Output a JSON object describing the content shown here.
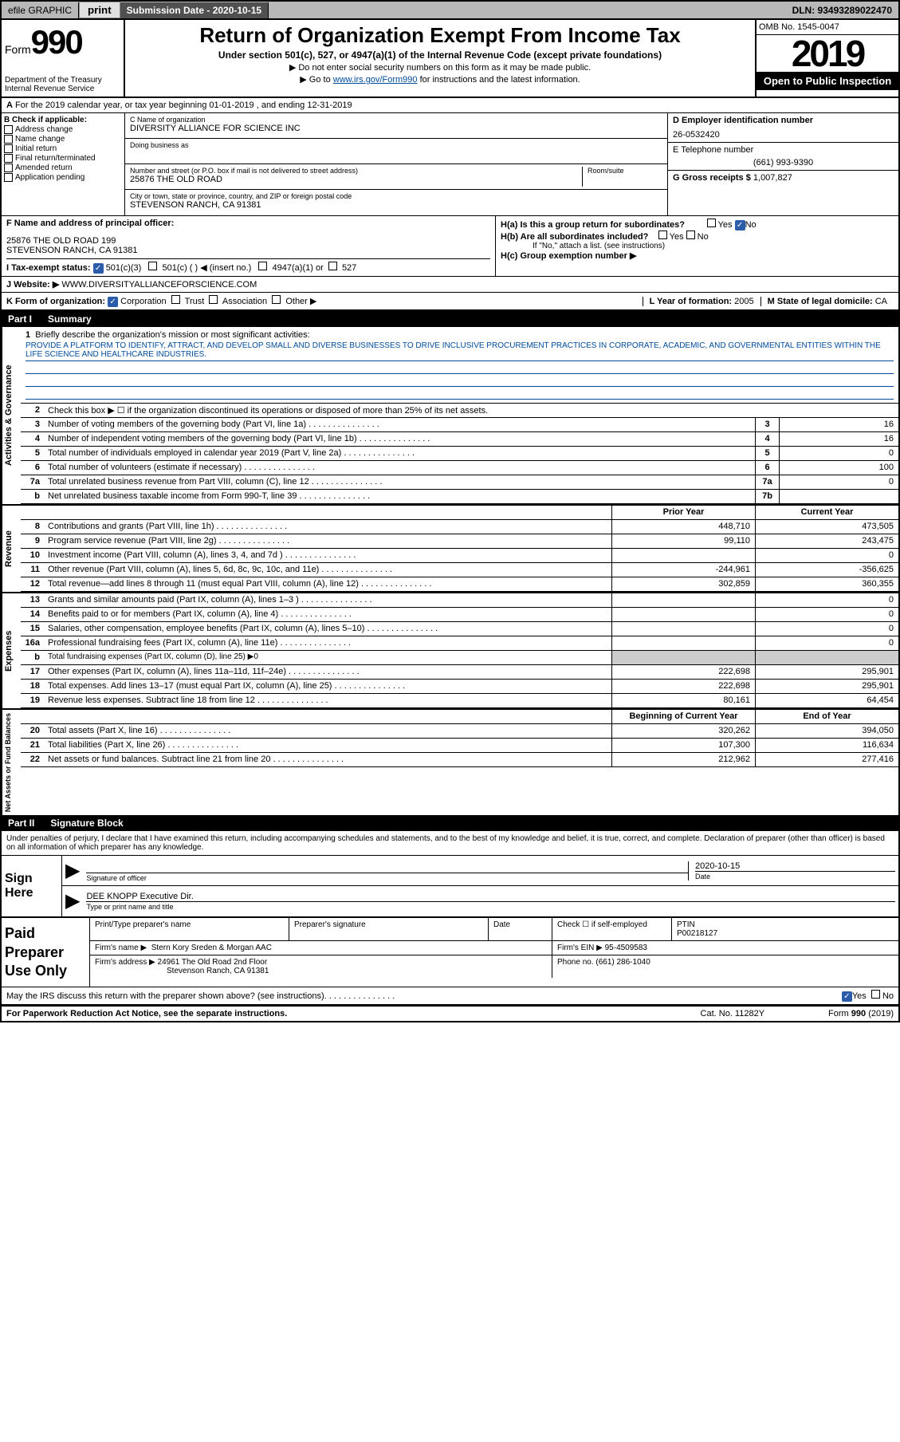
{
  "topbar": {
    "efile": "efile GRAPHIC",
    "print": "print",
    "subdate_label": "Submission Date - ",
    "subdate": "2020-10-15",
    "dln": "DLN: 93493289022470"
  },
  "header": {
    "form": "Form",
    "form_num": "990",
    "dept": "Department of the Treasury\nInternal Revenue Service",
    "title": "Return of Organization Exempt From Income Tax",
    "subtitle": "Under section 501(c), 527, or 4947(a)(1) of the Internal Revenue Code (except private foundations)",
    "sub1": "▶ Do not enter social security numbers on this form as it may be made public.",
    "sub2_pre": "▶ Go to ",
    "sub2_link": "www.irs.gov/Form990",
    "sub2_post": " for instructions and the latest information.",
    "omb": "OMB No. 1545-0047",
    "year": "2019",
    "inspection": "Open to Public Inspection"
  },
  "lineA": "For the 2019 calendar year, or tax year beginning 01-01-2019   , and ending 12-31-2019",
  "colB": {
    "label": "B Check if applicable:",
    "items": [
      "Address change",
      "Name change",
      "Initial return",
      "Final return/terminated",
      "Amended return",
      "Application pending"
    ]
  },
  "colC": {
    "name_label": "C Name of organization",
    "name": "DIVERSITY ALLIANCE FOR SCIENCE INC",
    "dba_label": "Doing business as",
    "dba": "",
    "addr_label": "Number and street (or P.O. box if mail is not delivered to street address)",
    "room_label": "Room/suite",
    "addr": "25876 THE OLD ROAD",
    "city_label": "City or town, state or province, country, and ZIP or foreign postal code",
    "city": "STEVENSON RANCH, CA  91381"
  },
  "colD": {
    "ein_label": "D Employer identification number",
    "ein": "26-0532420",
    "tel_label": "E Telephone number",
    "tel": "(661) 993-9390",
    "gross_label": "G Gross receipts $ ",
    "gross": "1,007,827"
  },
  "rowF": {
    "label": "F  Name and address of principal officer:",
    "addr1": "25876 THE OLD ROAD 199",
    "addr2": "STEVENSON RANCH, CA  91381"
  },
  "rowH": {
    "ha": "H(a)  Is this a group return for subordinates?",
    "hb": "H(b)  Are all subordinates included?",
    "hb_note": "If \"No,\" attach a list. (see instructions)",
    "hc": "H(c)  Group exemption number ▶"
  },
  "rowI": {
    "label": "I   Tax-exempt status:",
    "opt1": "501(c)(3)",
    "opt2": "501(c) (  ) ◀ (insert no.)",
    "opt3": "4947(a)(1) or",
    "opt4": "527"
  },
  "rowJ": {
    "label": "J    Website: ▶",
    "val": "WWW.DIVERSITYALLIANCEFORSCIENCE.COM"
  },
  "rowK": {
    "label": "K Form of organization:",
    "corp": "Corporation",
    "trust": "Trust",
    "assoc": "Association",
    "other": "Other ▶"
  },
  "rowL": {
    "label": "L Year of formation: ",
    "val": "2005"
  },
  "rowM": {
    "label": "M State of legal domicile: ",
    "val": "CA"
  },
  "part1": {
    "num": "Part I",
    "title": "Summary"
  },
  "mission": {
    "num": "1",
    "label": "Briefly describe the organization's mission or most significant activities:",
    "text": "PROVIDE A PLATFORM TO IDENTIFY, ATTRACT, AND DEVELOP SMALL AND DIVERSE BUSINESSES TO DRIVE INCLUSIVE PROCUREMENT PRACTICES IN CORPORATE, ACADEMIC, AND GOVERNMENTAL ENTITIES WITHIN THE LIFE SCIENCE AND HEALTHCARE INDUSTRIES."
  },
  "gov": {
    "label": "Activities & Governance",
    "rows": [
      {
        "n": "2",
        "t": "Check this box ▶ ☐  if the organization discontinued its operations or disposed of more than 25% of its net assets."
      },
      {
        "n": "3",
        "t": "Number of voting members of the governing body (Part VI, line 1a)",
        "box": "3",
        "v": "16"
      },
      {
        "n": "4",
        "t": "Number of independent voting members of the governing body (Part VI, line 1b)",
        "box": "4",
        "v": "16"
      },
      {
        "n": "5",
        "t": "Total number of individuals employed in calendar year 2019 (Part V, line 2a)",
        "box": "5",
        "v": "0"
      },
      {
        "n": "6",
        "t": "Total number of volunteers (estimate if necessary)",
        "box": "6",
        "v": "100"
      },
      {
        "n": "7a",
        "t": "Total unrelated business revenue from Part VIII, column (C), line 12",
        "box": "7a",
        "v": "0"
      },
      {
        "n": "b",
        "t": "Net unrelated business taxable income from Form 990-T, line 39",
        "box": "7b",
        "v": ""
      }
    ]
  },
  "rev": {
    "label": "Revenue",
    "head_prior": "Prior Year",
    "head_curr": "Current Year",
    "rows": [
      {
        "n": "8",
        "t": "Contributions and grants (Part VIII, line 1h)",
        "p": "448,710",
        "c": "473,505"
      },
      {
        "n": "9",
        "t": "Program service revenue (Part VIII, line 2g)",
        "p": "99,110",
        "c": "243,475"
      },
      {
        "n": "10",
        "t": "Investment income (Part VIII, column (A), lines 3, 4, and 7d )",
        "p": "",
        "c": "0"
      },
      {
        "n": "11",
        "t": "Other revenue (Part VIII, column (A), lines 5, 6d, 8c, 9c, 10c, and 11e)",
        "p": "-244,961",
        "c": "-356,625"
      },
      {
        "n": "12",
        "t": "Total revenue—add lines 8 through 11 (must equal Part VIII, column (A), line 12)",
        "p": "302,859",
        "c": "360,355"
      }
    ]
  },
  "exp": {
    "label": "Expenses",
    "rows": [
      {
        "n": "13",
        "t": "Grants and similar amounts paid (Part IX, column (A), lines 1–3 )",
        "p": "",
        "c": "0"
      },
      {
        "n": "14",
        "t": "Benefits paid to or for members (Part IX, column (A), line 4)",
        "p": "",
        "c": "0"
      },
      {
        "n": "15",
        "t": "Salaries, other compensation, employee benefits (Part IX, column (A), lines 5–10)",
        "p": "",
        "c": "0"
      },
      {
        "n": "16a",
        "t": "Professional fundraising fees (Part IX, column (A), line 11e)",
        "p": "",
        "c": "0"
      },
      {
        "n": "b",
        "t": "Total fundraising expenses (Part IX, column (D), line 25) ▶0",
        "grey": true
      },
      {
        "n": "17",
        "t": "Other expenses (Part IX, column (A), lines 11a–11d, 11f–24e)",
        "p": "222,698",
        "c": "295,901"
      },
      {
        "n": "18",
        "t": "Total expenses. Add lines 13–17 (must equal Part IX, column (A), line 25)",
        "p": "222,698",
        "c": "295,901"
      },
      {
        "n": "19",
        "t": "Revenue less expenses. Subtract line 18 from line 12",
        "p": "80,161",
        "c": "64,454"
      }
    ]
  },
  "net": {
    "label": "Net Assets or Fund Balances",
    "head_beg": "Beginning of Current Year",
    "head_end": "End of Year",
    "rows": [
      {
        "n": "20",
        "t": "Total assets (Part X, line 16)",
        "p": "320,262",
        "c": "394,050"
      },
      {
        "n": "21",
        "t": "Total liabilities (Part X, line 26)",
        "p": "107,300",
        "c": "116,634"
      },
      {
        "n": "22",
        "t": "Net assets or fund balances. Subtract line 21 from line 20",
        "p": "212,962",
        "c": "277,416"
      }
    ]
  },
  "part2": {
    "num": "Part II",
    "title": "Signature Block"
  },
  "sig": {
    "decl": "Under penalties of perjury, I declare that I have examined this return, including accompanying schedules and statements, and to the best of my knowledge and belief, it is true, correct, and complete. Declaration of preparer (other than officer) is based on all information of which preparer has any knowledge.",
    "sign_here": "Sign Here",
    "officer_sig": "Signature of officer",
    "date_label": "Date",
    "date": "2020-10-15",
    "name": "DEE KNOPP  Executive Dir.",
    "name_label": "Type or print name and title"
  },
  "prep": {
    "label": "Paid Preparer Use Only",
    "print_label": "Print/Type preparer's name",
    "prep_sig": "Preparer's signature",
    "date": "Date",
    "check": "Check ☐ if self-employed",
    "ptin_label": "PTIN",
    "ptin": "P00218127",
    "firm_label": "Firm's name   ▶",
    "firm": "Stern Kory Sreden & Morgan AAC",
    "ein_label": "Firm's EIN ▶",
    "ein": "95-4509583",
    "addr_label": "Firm's address ▶",
    "addr1": "24961 The Old Road 2nd Floor",
    "addr2": "Stevenson Ranch, CA  91381",
    "phone_label": "Phone no. ",
    "phone": "(661) 286-1040"
  },
  "discuss": "May the IRS discuss this return with the preparer shown above? (see instructions)",
  "footer": {
    "pra": "For Paperwork Reduction Act Notice, see the separate instructions.",
    "cat": "Cat. No. 11282Y",
    "form": "Form 990 (2019)"
  },
  "yesno": {
    "yes": "Yes",
    "no": "No"
  }
}
